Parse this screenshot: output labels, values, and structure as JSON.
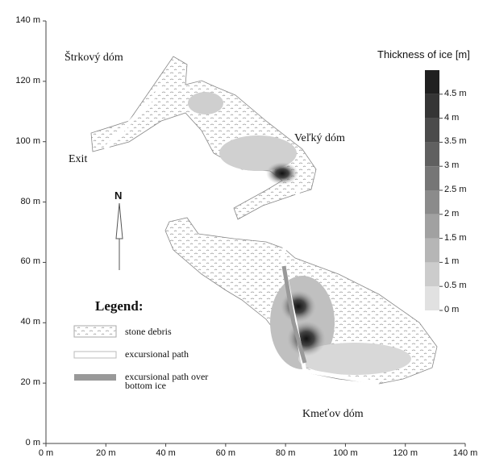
{
  "title": "Thickness of ice [m]",
  "x_axis": {
    "lim": [
      0,
      140
    ],
    "ticks": [
      {
        "value": 0,
        "label": "0 m"
      },
      {
        "value": 20,
        "label": "20 m"
      },
      {
        "value": 40,
        "label": "40 m"
      },
      {
        "value": 60,
        "label": "60 m"
      },
      {
        "value": 80,
        "label": "80 m"
      },
      {
        "value": 100,
        "label": "100 m"
      },
      {
        "value": 120,
        "label": "120 m"
      },
      {
        "value": 140,
        "label": "140 m"
      }
    ]
  },
  "y_axis": {
    "lim": [
      0,
      140
    ],
    "ticks": [
      {
        "value": 0,
        "label": "0 m"
      },
      {
        "value": 20,
        "label": "20 m"
      },
      {
        "value": 40,
        "label": "40 m"
      },
      {
        "value": 60,
        "label": "60 m"
      },
      {
        "value": 80,
        "label": "80 m"
      },
      {
        "value": 100,
        "label": "100 m"
      },
      {
        "value": 120,
        "label": "120 m"
      },
      {
        "value": 140,
        "label": "140 m"
      }
    ]
  },
  "colorbar": {
    "lim": [
      0,
      5
    ],
    "ticks": [
      {
        "value": 0,
        "label": "0 m"
      },
      {
        "value": 0.5,
        "label": "0.5 m"
      },
      {
        "value": 1,
        "label": "1 m"
      },
      {
        "value": 1.5,
        "label": "1.5 m"
      },
      {
        "value": 2,
        "label": "2 m"
      },
      {
        "value": 2.5,
        "label": "2.5 m"
      },
      {
        "value": 3,
        "label": "3 m"
      },
      {
        "value": 3.5,
        "label": "3.5 m"
      },
      {
        "value": 4,
        "label": "4 m"
      },
      {
        "value": 4.5,
        "label": "4.5 m"
      }
    ]
  },
  "places": [
    "Štrkový dóm",
    "Exit",
    "Veľký dóm",
    "Kmeťov dóm"
  ],
  "north": "N",
  "legend": {
    "title": "Legend:",
    "items": [
      "stone debris",
      "excursional path",
      "excursional path over bottom ice"
    ]
  }
}
